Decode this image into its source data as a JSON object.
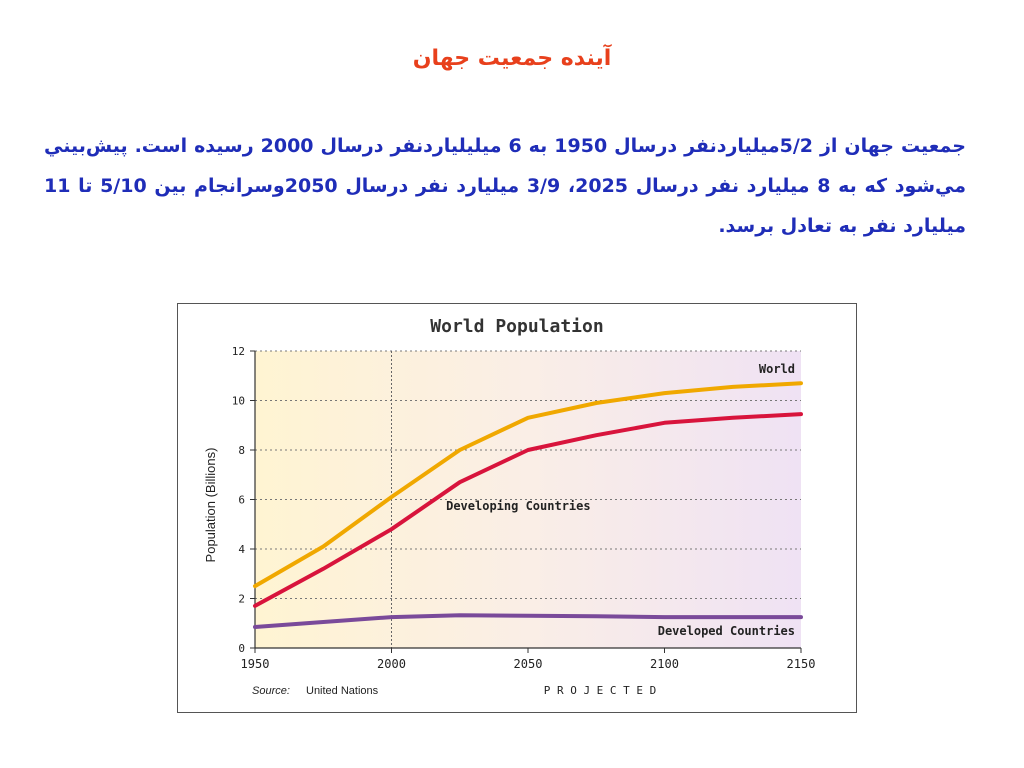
{
  "slide": {
    "title": "آینده جمعیت جهان",
    "body": "جمعيت جهان از 5/2ميلياردنفر درسال 1950 به 6 ميليلياردنفر درسال 2000 رسيده است. پيش‌بيني مي‌شود كه به 8 ميليارد نفر درسال 2025، 3/9 ميليارد نفر درسال 2050وسرانجام بين 5/10 تا 11 ميليارد نفر به تعادل برسد."
  },
  "chart_data": {
    "type": "line",
    "title": "World Population",
    "xlabel": "",
    "ylabel": "Population (Billions)",
    "x": [
      1950,
      1975,
      2000,
      2025,
      2050,
      2075,
      2100,
      2125,
      2150
    ],
    "xticks": [
      "1950",
      "2000",
      "2050",
      "2100",
      "2150"
    ],
    "yticks": [
      "0",
      "2",
      "4",
      "6",
      "8",
      "10",
      "12"
    ],
    "xlim": [
      1950,
      2150
    ],
    "ylim": [
      0,
      12
    ],
    "grid": true,
    "projected_from": 2000,
    "projected_label": "P R O J E C T E D",
    "source_label": "Source:",
    "source_text": "United Nations",
    "series": [
      {
        "name": "World",
        "color": "#f0a800",
        "values": [
          2.5,
          4.1,
          6.1,
          8.0,
          9.3,
          9.9,
          10.3,
          10.55,
          10.7
        ]
      },
      {
        "name": "Developing Countries",
        "color": "#d8143c",
        "values": [
          1.7,
          3.2,
          4.8,
          6.7,
          8.0,
          8.6,
          9.1,
          9.3,
          9.45
        ]
      },
      {
        "name": "Developed Countries",
        "color": "#7a4a9a",
        "values": [
          0.85,
          1.05,
          1.25,
          1.32,
          1.3,
          1.28,
          1.25,
          1.25,
          1.25
        ]
      }
    ]
  }
}
